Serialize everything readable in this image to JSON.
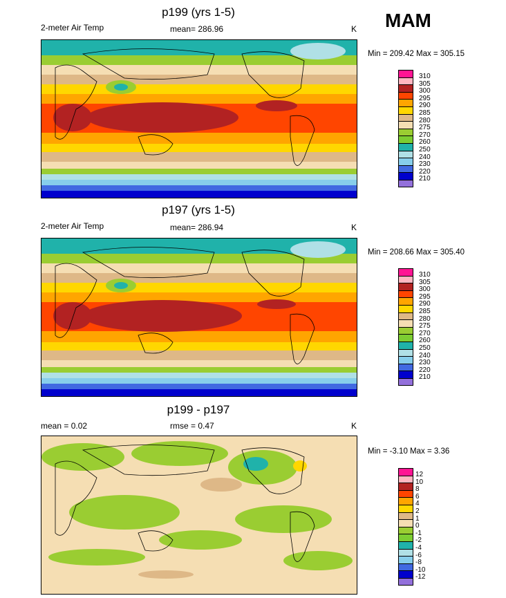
{
  "season": "MAM",
  "panels": [
    {
      "title": "p199 (yrs 1-5)",
      "left_label": "2-meter Air Temp",
      "mid_label": "mean= 286.96",
      "unit": "K",
      "minmax": "Min = 209.42 Max = 305.15",
      "colorbar_labels": [
        "310",
        "305",
        "300",
        "295",
        "290",
        "285",
        "280",
        "275",
        "270",
        "260",
        "250",
        "240",
        "230",
        "220",
        "210"
      ]
    },
    {
      "title": "p197 (yrs 1-5)",
      "left_label": "2-meter Air Temp",
      "mid_label": "mean= 286.94",
      "unit": "K",
      "minmax": "Min = 208.66 Max = 305.40",
      "colorbar_labels": [
        "310",
        "305",
        "300",
        "295",
        "290",
        "285",
        "280",
        "275",
        "270",
        "260",
        "250",
        "240",
        "230",
        "220",
        "210"
      ]
    },
    {
      "title": "p199 - p197",
      "left_label": "mean =   0.02",
      "mid_label": "rmse =   0.47",
      "unit": "K",
      "minmax": "Min =  -3.10 Max =   3.36",
      "colorbar_labels": [
        "12",
        "10",
        "8",
        "6",
        "4",
        "2",
        "1",
        "0",
        "-1",
        "-2",
        "-4",
        "-6",
        "-8",
        "-10",
        "-12"
      ]
    }
  ],
  "colors": {
    "temp_palette": [
      "#ff1493",
      "#ffb6c1",
      "#b22222",
      "#ff4500",
      "#ffa500",
      "#ffd700",
      "#deb887",
      "#f5deb3",
      "#9acd32",
      "#7ccd32",
      "#20b2aa",
      "#b0e0e6",
      "#87ceeb",
      "#4169e1",
      "#0000cd",
      "#9370db"
    ],
    "diff_palette": [
      "#ff1493",
      "#ffb6c1",
      "#b22222",
      "#ff4500",
      "#ffa500",
      "#ffd700",
      "#deb887",
      "#f5deb3",
      "#9acd32",
      "#7ccd32",
      "#20b2aa",
      "#b0e0e6",
      "#87ceeb",
      "#4169e1",
      "#0000cd",
      "#9370db"
    ]
  }
}
